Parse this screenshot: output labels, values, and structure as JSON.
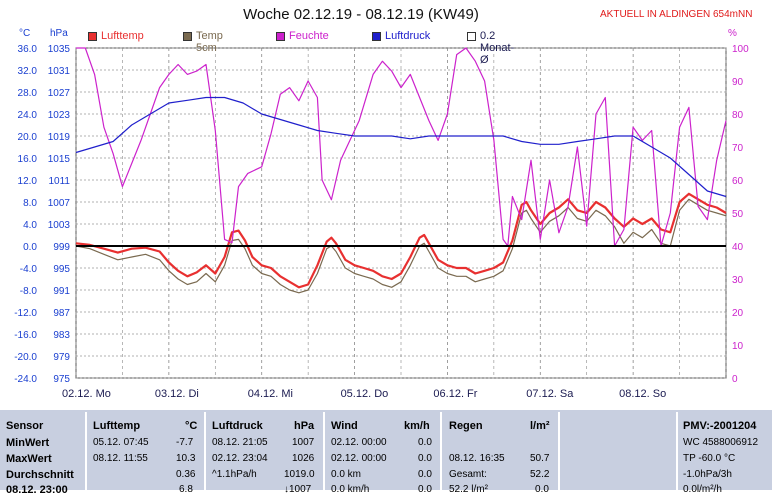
{
  "title": "Woche 02.12.19 - 08.12.19 (KW49)",
  "status_label": "AKTUELL IN ALDINGEN 654mNN",
  "units": {
    "temp": "°C",
    "pressure": "hPa",
    "humidity": "%"
  },
  "legend": [
    {
      "label": "Lufttemp",
      "color": "#e83030"
    },
    {
      "label": "Temp 5cm",
      "color": "#7a6a50"
    },
    {
      "label": "Feuchte",
      "color": "#cc22cc"
    },
    {
      "label": "Luftdruck",
      "color": "#2020cc"
    },
    {
      "label": "0.2 Monat-Ø",
      "color": "#ffffff"
    }
  ],
  "chart_data": {
    "type": "line",
    "x_unit": "days",
    "xlim": [
      0,
      7
    ],
    "x_tick_labels": [
      "02.12. Mo",
      "03.12. Di",
      "04.12. Mi",
      "05.12. Do",
      "06.12. Fr",
      "07.12. Sa",
      "08.12. So"
    ],
    "y_left_temp": {
      "label": "°C",
      "ylim": [
        -24,
        36
      ],
      "ticks": [
        "36.0",
        "32.0",
        "28.0",
        "24.0",
        "20.0",
        "16.0",
        "12.0",
        "8.0",
        "4.0",
        "0.0",
        "-4.0",
        "-8.0",
        "-12.0",
        "-16.0",
        "-20.0",
        "-24.0"
      ]
    },
    "y_left_pressure": {
      "label": "hPa",
      "ticks": [
        "1035",
        "1031",
        "1027",
        "1023",
        "1019",
        "1015",
        "1011",
        "1007",
        "1003",
        "999",
        "995",
        "991",
        "987",
        "983",
        "979",
        "975"
      ]
    },
    "y_right_humidity": {
      "label": "%",
      "ylim": [
        0,
        100
      ],
      "ticks": [
        "100",
        "90",
        "80",
        "70",
        "60",
        "50",
        "40",
        "30",
        "20",
        "10",
        "0"
      ]
    },
    "series": [
      {
        "name": "Lufttemp",
        "axis": "temp",
        "color": "#e83030",
        "x": [
          0,
          0.15,
          0.3,
          0.45,
          0.6,
          0.75,
          0.9,
          1.0,
          1.1,
          1.2,
          1.3,
          1.4,
          1.5,
          1.6,
          1.68,
          1.75,
          1.82,
          1.9,
          2.0,
          2.1,
          2.2,
          2.3,
          2.4,
          2.5,
          2.6,
          2.7,
          2.75,
          2.8,
          2.9,
          3.0,
          3.1,
          3.2,
          3.3,
          3.4,
          3.5,
          3.6,
          3.7,
          3.75,
          3.8,
          3.9,
          4.0,
          4.1,
          4.2,
          4.3,
          4.4,
          4.5,
          4.6,
          4.7,
          4.8,
          4.85,
          4.9,
          5.0,
          5.1,
          5.2,
          5.3,
          5.4,
          5.5,
          5.6,
          5.7,
          5.8,
          5.9,
          6.0,
          6.1,
          6.2,
          6.3,
          6.4,
          6.5,
          6.6,
          6.7,
          6.8,
          6.9,
          7.0
        ],
        "y": [
          0.5,
          0.2,
          -0.5,
          -1.2,
          -0.5,
          -0.3,
          -1.0,
          -3.0,
          -4.5,
          -5.5,
          -4.8,
          -3.5,
          -5.0,
          -2.0,
          2.5,
          2.8,
          1.0,
          -2.0,
          -3.5,
          -4.0,
          -5.5,
          -6.5,
          -7.5,
          -7.0,
          -3.5,
          0.8,
          1.5,
          0.5,
          -2.5,
          -3.5,
          -4.0,
          -4.5,
          -5.5,
          -6.0,
          -5.0,
          -2.0,
          1.5,
          2.0,
          0.5,
          -2.5,
          -3.5,
          -4.0,
          -4.0,
          -5.0,
          -4.5,
          -4.0,
          -3.0,
          1.0,
          7.5,
          8.0,
          6.5,
          4.0,
          6.0,
          7.0,
          8.5,
          6.5,
          6.0,
          8.0,
          7.0,
          5.0,
          3.5,
          5.0,
          4.0,
          5.0,
          3.0,
          2.5,
          8.0,
          9.5,
          8.5,
          7.5,
          7.0,
          6.0
        ]
      },
      {
        "name": "Temp 5cm",
        "axis": "temp",
        "color": "#7a6a50",
        "x": [
          0,
          0.15,
          0.3,
          0.45,
          0.6,
          0.75,
          0.9,
          1.0,
          1.1,
          1.2,
          1.3,
          1.4,
          1.5,
          1.6,
          1.68,
          1.75,
          1.82,
          1.9,
          2.0,
          2.1,
          2.2,
          2.3,
          2.4,
          2.5,
          2.6,
          2.7,
          2.75,
          2.8,
          2.9,
          3.0,
          3.1,
          3.2,
          3.3,
          3.4,
          3.5,
          3.6,
          3.7,
          3.75,
          3.8,
          3.9,
          4.0,
          4.1,
          4.2,
          4.3,
          4.4,
          4.5,
          4.6,
          4.7,
          4.8,
          4.85,
          4.9,
          5.0,
          5.1,
          5.2,
          5.3,
          5.4,
          5.5,
          5.6,
          5.7,
          5.8,
          5.9,
          6.0,
          6.1,
          6.2,
          6.3,
          6.4,
          6.5,
          6.6,
          6.7,
          6.8,
          6.9,
          7.0
        ],
        "y": [
          0.0,
          -0.5,
          -1.5,
          -2.5,
          -2.0,
          -1.5,
          -2.5,
          -4.5,
          -6.0,
          -7.0,
          -6.5,
          -5.0,
          -6.5,
          -3.5,
          1.0,
          1.2,
          -0.5,
          -3.5,
          -5.0,
          -5.5,
          -7.0,
          -8.0,
          -8.5,
          -8.0,
          -5.0,
          -0.5,
          0.0,
          -1.0,
          -4.0,
          -5.0,
          -5.5,
          -6.0,
          -7.0,
          -7.5,
          -6.5,
          -3.5,
          0.0,
          0.5,
          -1.0,
          -4.0,
          -5.0,
          -5.5,
          -5.5,
          -6.5,
          -6.0,
          -5.5,
          -4.5,
          -0.5,
          6.0,
          6.5,
          5.0,
          2.5,
          4.5,
          5.5,
          7.0,
          5.0,
          4.5,
          6.5,
          5.5,
          3.5,
          0.5,
          2.5,
          1.5,
          3.0,
          0.5,
          0.0,
          6.5,
          8.5,
          7.5,
          6.5,
          6.0,
          5.5
        ]
      },
      {
        "name": "Feuchte",
        "axis": "humidity",
        "color": "#cc22cc",
        "x": [
          0,
          0.1,
          0.2,
          0.3,
          0.4,
          0.5,
          0.6,
          0.7,
          0.8,
          0.9,
          1.0,
          1.1,
          1.2,
          1.3,
          1.4,
          1.5,
          1.6,
          1.68,
          1.75,
          1.85,
          2.0,
          2.1,
          2.2,
          2.3,
          2.4,
          2.5,
          2.6,
          2.65,
          2.75,
          2.85,
          2.95,
          3.05,
          3.2,
          3.3,
          3.4,
          3.5,
          3.6,
          3.7,
          3.8,
          3.9,
          4.0,
          4.1,
          4.2,
          4.3,
          4.4,
          4.5,
          4.6,
          4.65,
          4.7,
          4.8,
          4.9,
          5.0,
          5.1,
          5.2,
          5.3,
          5.4,
          5.5,
          5.6,
          5.7,
          5.8,
          5.9,
          6.0,
          6.1,
          6.2,
          6.3,
          6.4,
          6.5,
          6.6,
          6.7,
          6.8,
          6.9,
          7.0
        ],
        "y": [
          100,
          100,
          92,
          76,
          68,
          58,
          65,
          72,
          80,
          88,
          92,
          95,
          92,
          93,
          95,
          75,
          42,
          41,
          58,
          62,
          64,
          74,
          86,
          88,
          84,
          90,
          85,
          60,
          54,
          66,
          72,
          78,
          92,
          96,
          93,
          88,
          92,
          85,
          78,
          72,
          80,
          98,
          100,
          96,
          90,
          72,
          42,
          40,
          55,
          48,
          66,
          42,
          60,
          44,
          52,
          70,
          46,
          80,
          85,
          40,
          45,
          76,
          72,
          75,
          40,
          50,
          76,
          82,
          52,
          48,
          66,
          78
        ]
      },
      {
        "name": "Luftdruck",
        "axis": "pressure",
        "color": "#2020cc",
        "x": [
          0,
          0.2,
          0.4,
          0.6,
          0.8,
          1.0,
          1.2,
          1.4,
          1.6,
          1.8,
          2.0,
          2.2,
          2.4,
          2.6,
          2.8,
          3.0,
          3.2,
          3.4,
          3.6,
          3.8,
          4.0,
          4.2,
          4.4,
          4.6,
          4.8,
          5.0,
          5.2,
          5.4,
          5.6,
          5.8,
          6.0,
          6.2,
          6.4,
          6.6,
          6.8,
          7.0
        ],
        "y": [
          1016,
          1017,
          1018,
          1021,
          1023,
          1025,
          1025.5,
          1026,
          1026,
          1025,
          1023,
          1022,
          1021,
          1020,
          1019.5,
          1019,
          1019,
          1019,
          1018.5,
          1019,
          1019,
          1019,
          1019,
          1019,
          1018,
          1017.5,
          1017.5,
          1018,
          1018.5,
          1019,
          1019,
          1017,
          1015,
          1012,
          1009,
          1008
        ]
      }
    ]
  },
  "panel": {
    "rows": [
      "Sensor",
      "MinWert",
      "MaxWert",
      "Durchschnitt",
      "08.12. 23:00"
    ],
    "lufttemp": {
      "title": "Lufttemp",
      "unit": "°C",
      "cells": [
        [
          "05.12.  07:45",
          "-7.7"
        ],
        [
          "08.12.  11:55",
          "10.3"
        ],
        [
          "",
          "0.36"
        ],
        [
          "",
          "6.8"
        ]
      ]
    },
    "luftdruck": {
      "title": "Luftdruck",
      "unit": "hPa",
      "cells": [
        [
          "08.12.  21:05",
          "1007"
        ],
        [
          "02.12.  23:04",
          "1026"
        ],
        [
          "^1.1hPa/h",
          "1019.0"
        ],
        [
          "",
          "↓1007"
        ]
      ]
    },
    "wind": {
      "title": "Wind",
      "unit": "km/h",
      "cells": [
        [
          "02.12.  00:00",
          "0.0"
        ],
        [
          "02.12.  00:00",
          "0.0"
        ],
        [
          "0.0 km",
          "0.0"
        ],
        [
          "0.0 km/h",
          "0.0"
        ]
      ]
    },
    "regen": {
      "title": "Regen",
      "unit": "l/m²",
      "cells": [
        [
          "",
          ""
        ],
        [
          "08.12.  16:35",
          "50.7"
        ],
        [
          "Gesamt:",
          "52.2"
        ],
        [
          "52.2 l/m²",
          "0.0"
        ]
      ]
    },
    "pmv": {
      "title": "PMV:-2001204",
      "lines": [
        "WC 4588006912",
        "TP -60.0 °C",
        "-1.0hPa/3h",
        "0.0l/m²/h"
      ]
    }
  }
}
